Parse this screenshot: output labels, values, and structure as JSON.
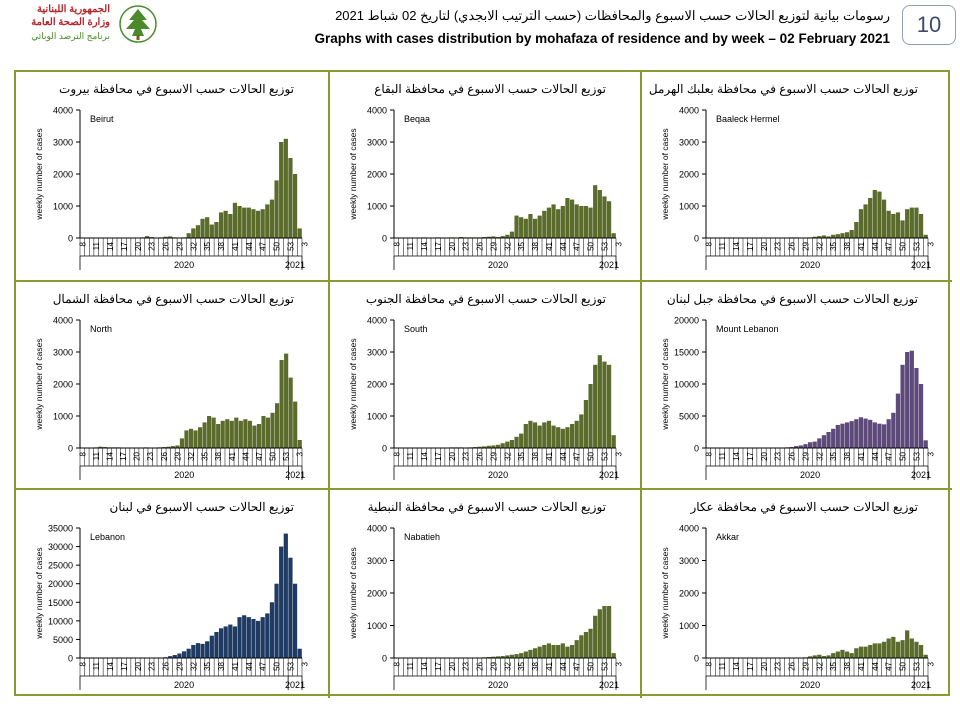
{
  "page": {
    "page_number": "10",
    "header_ar": "رسومات بيانية لتوزيع الحالات حسب الاسبوع  والمحافظات (حسب الترتيب الابجدي) لتاريخ 02 شباط 2021",
    "header_en": "Graphs with cases distribution by mohafaza  of residence and by week – 02 February 2021",
    "logo": {
      "line1": "الجمهورية اللبنانية",
      "line2": "وزارة الصحة العامة",
      "line3": "برنامج الترصد الوبائي",
      "icon": "cedar-icon",
      "red": "#b5262c",
      "green": "#4a8a2a"
    },
    "frame_color": "#8a9a32"
  },
  "chart_data": [
    {
      "type": "bar",
      "title": "توزيع الحالات حسب الاسبوع في محافظة بيروت",
      "label": "Beirut",
      "ylabel": "weekly number of cases",
      "ylim": [
        0,
        4000
      ],
      "yticks": [
        0,
        1000,
        2000,
        3000,
        4000
      ],
      "xtick_labels": [
        "8",
        "11",
        "14",
        "17",
        "20",
        "23",
        "26",
        "29",
        "32",
        "35",
        "38",
        "41",
        "44",
        "47",
        "50",
        "53",
        "3"
      ],
      "year_labels": [
        "2020",
        "2021"
      ],
      "color": "#5a6b2b",
      "values": [
        0,
        0,
        0,
        0,
        0,
        0,
        0,
        0,
        0,
        0,
        0,
        0,
        10,
        20,
        60,
        30,
        10,
        20,
        40,
        50,
        20,
        10,
        20,
        150,
        300,
        400,
        600,
        650,
        420,
        500,
        800,
        850,
        750,
        1100,
        1000,
        950,
        950,
        900,
        850,
        900,
        1050,
        1200,
        1800,
        3000,
        3100,
        2500,
        2000,
        300
      ]
    },
    {
      "type": "bar",
      "title": "توزيع الحالات حسب الاسبوع في محافظة البقاع",
      "label": "Beqaa",
      "ylabel": "weekly number of cases",
      "ylim": [
        0,
        4000
      ],
      "yticks": [
        0,
        1000,
        2000,
        3000,
        4000
      ],
      "xtick_labels": [
        "8",
        "11",
        "14",
        "17",
        "20",
        "23",
        "26",
        "29",
        "32",
        "35",
        "38",
        "41",
        "44",
        "47",
        "50",
        "53",
        "3"
      ],
      "year_labels": [
        "2020",
        "2021"
      ],
      "color": "#5a6b2b",
      "values": [
        0,
        0,
        0,
        0,
        0,
        10,
        20,
        10,
        10,
        20,
        10,
        10,
        20,
        10,
        30,
        20,
        20,
        20,
        20,
        30,
        40,
        50,
        30,
        60,
        100,
        200,
        700,
        650,
        600,
        750,
        600,
        700,
        850,
        950,
        1050,
        900,
        1000,
        1250,
        1200,
        1050,
        1000,
        1000,
        950,
        1650,
        1500,
        1300,
        1150,
        150
      ]
    },
    {
      "type": "bar",
      "title": "توزيع الحالات حسب الاسبوع في محافظة بعلبك الهرمل",
      "label": "Baaleck Hermel",
      "ylabel": "weekly number of cases",
      "ylim": [
        0,
        4000
      ],
      "yticks": [
        0,
        1000,
        2000,
        3000,
        4000
      ],
      "xtick_labels": [
        "8",
        "11",
        "14",
        "17",
        "20",
        "23",
        "26",
        "29",
        "32",
        "35",
        "38",
        "41",
        "44",
        "47",
        "50",
        "53",
        "3"
      ],
      "year_labels": [
        "2020",
        "2021"
      ],
      "color": "#5a6b2b",
      "values": [
        0,
        0,
        0,
        0,
        0,
        0,
        0,
        0,
        0,
        0,
        0,
        0,
        0,
        0,
        10,
        10,
        10,
        10,
        20,
        20,
        10,
        10,
        20,
        40,
        60,
        80,
        50,
        100,
        120,
        150,
        180,
        250,
        500,
        900,
        1050,
        1250,
        1500,
        1450,
        1200,
        850,
        750,
        800,
        550,
        900,
        950,
        950,
        750,
        100
      ]
    },
    {
      "type": "bar",
      "title": "توزيع الحالات حسب الاسبوع في محافظة الشمال",
      "label": "North",
      "ylabel": "weekly number of cases",
      "ylim": [
        0,
        4000
      ],
      "yticks": [
        0,
        1000,
        2000,
        3000,
        4000
      ],
      "xtick_labels": [
        "8",
        "11",
        "14",
        "17",
        "20",
        "23",
        "26",
        "29",
        "32",
        "35",
        "38",
        "41",
        "44",
        "47",
        "50",
        "53",
        "3"
      ],
      "year_labels": [
        "2020",
        "2021"
      ],
      "color": "#5a6b2b",
      "values": [
        0,
        0,
        10,
        20,
        40,
        30,
        20,
        20,
        20,
        10,
        10,
        10,
        10,
        10,
        20,
        10,
        10,
        20,
        30,
        40,
        60,
        80,
        300,
        550,
        600,
        550,
        650,
        800,
        1000,
        950,
        750,
        850,
        900,
        850,
        950,
        850,
        900,
        850,
        700,
        750,
        1000,
        950,
        1100,
        1400,
        2750,
        2950,
        2200,
        1450,
        250
      ]
    },
    {
      "type": "bar",
      "title": "توزيع الحالات حسب الاسبوع في محافظة الجنوب",
      "label": "South",
      "ylabel": "weekly number of cases",
      "ylim": [
        0,
        4000
      ],
      "yticks": [
        0,
        1000,
        2000,
        3000,
        4000
      ],
      "xtick_labels": [
        "8",
        "11",
        "14",
        "17",
        "20",
        "23",
        "26",
        "29",
        "32",
        "35",
        "38",
        "41",
        "44",
        "47",
        "50",
        "53",
        "3"
      ],
      "year_labels": [
        "2020",
        "2021"
      ],
      "color": "#5a6b2b",
      "values": [
        0,
        0,
        10,
        10,
        10,
        10,
        0,
        10,
        10,
        10,
        10,
        10,
        20,
        20,
        20,
        10,
        20,
        30,
        40,
        50,
        70,
        80,
        100,
        150,
        200,
        250,
        350,
        450,
        750,
        850,
        800,
        700,
        800,
        850,
        700,
        650,
        600,
        650,
        750,
        850,
        1050,
        1500,
        2000,
        2600,
        2900,
        2700,
        2600,
        400
      ]
    },
    {
      "type": "bar",
      "title": "توزيع الحالات حسب الاسبوع في محافظة جبل لبنان",
      "label": "Mount Lebanon",
      "ylabel": "weekly number of cases",
      "ylim": [
        0,
        20000
      ],
      "yticks": [
        0,
        5000,
        10000,
        15000,
        20000
      ],
      "xtick_labels": [
        "8",
        "11",
        "14",
        "17",
        "20",
        "23",
        "26",
        "29",
        "32",
        "35",
        "38",
        "41",
        "44",
        "47",
        "50",
        "53",
        "3"
      ],
      "year_labels": [
        "2020",
        "2021"
      ],
      "color": "#5e4a7a",
      "values": [
        0,
        0,
        0,
        0,
        0,
        0,
        0,
        0,
        0,
        0,
        0,
        0,
        0,
        0,
        0,
        0,
        50,
        100,
        150,
        300,
        400,
        600,
        900,
        1000,
        1500,
        2000,
        2500,
        3000,
        3600,
        3800,
        4000,
        4200,
        4500,
        4800,
        4600,
        4400,
        4000,
        3800,
        3700,
        4500,
        5500,
        8500,
        13000,
        15000,
        15200,
        12500,
        10000,
        1200
      ]
    },
    {
      "type": "bar",
      "title": "توزيع الحالات حسب الاسبوع في لبنان",
      "label": "Lebanon",
      "ylabel": "weekly number of cases",
      "ylim": [
        0,
        35000
      ],
      "yticks": [
        0,
        5000,
        10000,
        15000,
        20000,
        25000,
        30000,
        35000
      ],
      "xtick_labels": [
        "8",
        "11",
        "14",
        "17",
        "20",
        "23",
        "26",
        "29",
        "32",
        "35",
        "38",
        "41",
        "44",
        "47",
        "50",
        "53",
        "3"
      ],
      "year_labels": [
        "2020",
        "2021"
      ],
      "color": "#1f3b64",
      "values": [
        0,
        0,
        0,
        0,
        0,
        0,
        0,
        0,
        0,
        0,
        0,
        0,
        0,
        0,
        0,
        0,
        0,
        100,
        200,
        500,
        800,
        1200,
        1800,
        2500,
        3500,
        4000,
        3800,
        4500,
        6000,
        7000,
        8000,
        8500,
        9000,
        8500,
        11000,
        11500,
        11000,
        10500,
        10000,
        11000,
        12000,
        15000,
        20000,
        30000,
        33500,
        27000,
        20000,
        2500
      ]
    },
    {
      "type": "bar",
      "title": "توزيع الحالات حسب الاسبوع في محافظة النبطية",
      "label": "Nabatieh",
      "ylabel": "weekly number of cases",
      "ylim": [
        0,
        4000
      ],
      "yticks": [
        0,
        1000,
        2000,
        3000,
        4000
      ],
      "xtick_labels": [
        "8",
        "11",
        "14",
        "17",
        "20",
        "23",
        "26",
        "29",
        "32",
        "35",
        "38",
        "41",
        "44",
        "47",
        "50",
        "53",
        "3"
      ],
      "year_labels": [
        "2020",
        "2021"
      ],
      "color": "#5a6b2b",
      "values": [
        0,
        0,
        0,
        0,
        0,
        0,
        0,
        0,
        0,
        0,
        0,
        0,
        0,
        0,
        0,
        0,
        0,
        0,
        10,
        20,
        30,
        40,
        50,
        60,
        80,
        100,
        120,
        150,
        200,
        250,
        300,
        350,
        400,
        450,
        400,
        400,
        450,
        350,
        400,
        550,
        700,
        800,
        900,
        1300,
        1500,
        1600,
        1600,
        150
      ]
    },
    {
      "type": "bar",
      "title": "توزيع الحالات حسب الاسبوع في محافظة عكار",
      "label": "Akkar",
      "ylabel": "weekly number of cases",
      "ylim": [
        0,
        4000
      ],
      "yticks": [
        0,
        1000,
        2000,
        3000,
        4000
      ],
      "xtick_labels": [
        "8",
        "11",
        "14",
        "17",
        "20",
        "23",
        "26",
        "29",
        "32",
        "35",
        "38",
        "41",
        "44",
        "47",
        "50",
        "53",
        "3"
      ],
      "year_labels": [
        "2020",
        "2021"
      ],
      "color": "#5a6b2b",
      "values": [
        0,
        0,
        0,
        0,
        0,
        0,
        0,
        0,
        0,
        0,
        0,
        0,
        0,
        0,
        0,
        0,
        0,
        0,
        0,
        0,
        0,
        20,
        50,
        80,
        100,
        60,
        80,
        150,
        200,
        250,
        200,
        150,
        300,
        350,
        350,
        400,
        450,
        450,
        500,
        600,
        650,
        500,
        550,
        850,
        600,
        500,
        400,
        100
      ]
    }
  ]
}
